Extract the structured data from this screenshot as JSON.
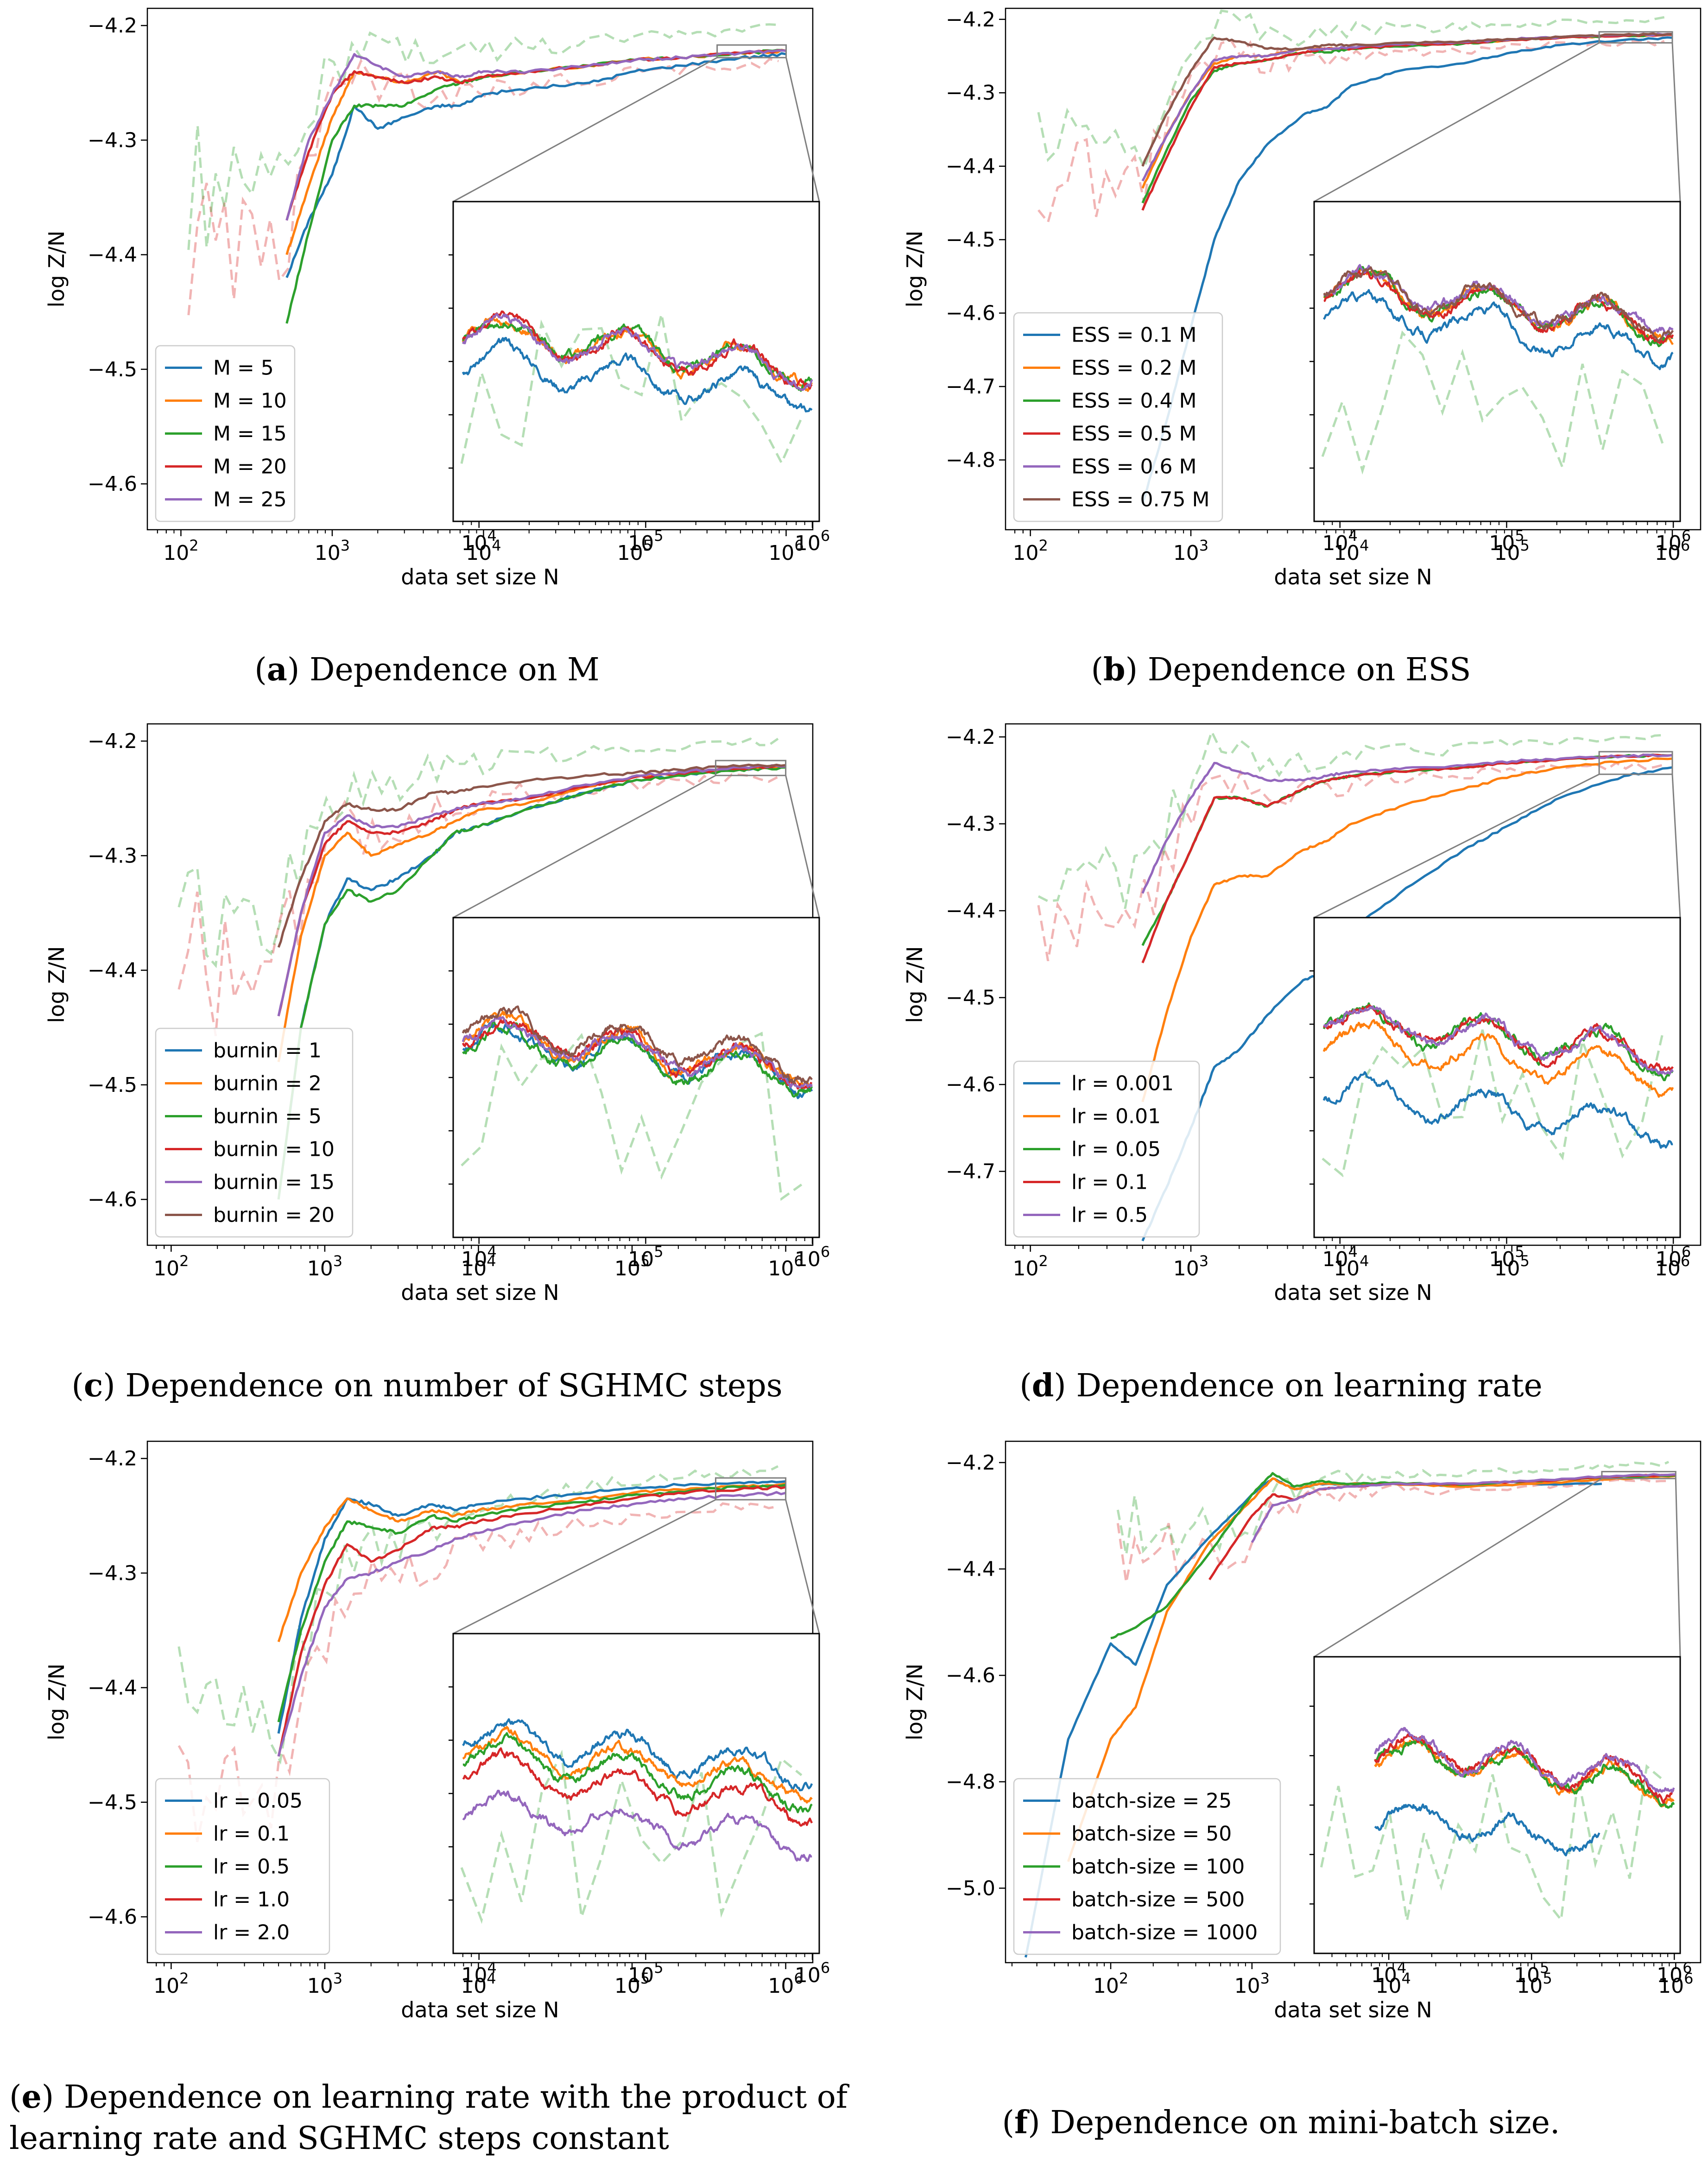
{
  "figure": {
    "captions": [
      {
        "letter": "a",
        "text": "Dependence on M"
      },
      {
        "letter": "b",
        "text": "Dependence on ESS"
      },
      {
        "letter": "c",
        "text": "Dependence on number of SGHMC steps"
      },
      {
        "letter": "d",
        "text": "Dependence on learning rate"
      },
      {
        "letter": "e",
        "text": "Dependence on learning rate with the product of",
        "text2": "learning rate and SGHMC steps constant"
      },
      {
        "letter": "f",
        "text": "Dependence on mini-batch size."
      }
    ]
  },
  "colors": {
    "c0": "#1f77b4",
    "c1": "#ff7f0e",
    "c2": "#2ca02c",
    "c3": "#d62728",
    "c4": "#9467bd",
    "c5": "#8c564b",
    "ref_green": "#2ca02c",
    "ref_red": "#d62728",
    "zoom": "#808080"
  },
  "chart_data": [
    {
      "type": "line",
      "panel": "a",
      "xscale": "log",
      "xlabel": "data set size N",
      "ylabel": "log Z/N",
      "xlim": [
        60,
        1500000
      ],
      "ylim": [
        -4.64,
        -4.185
      ],
      "yticks": [
        -4.2,
        -4.3,
        -4.4,
        -4.5,
        -4.6
      ],
      "xtick_labels": [
        "10^2",
        "10^3",
        "10^4",
        "10^5",
        "10^6"
      ],
      "legend": "lower-left",
      "zoom_region": {
        "x": [
          350000,
          1000000
        ],
        "y": [
          -4.228,
          -4.217
        ]
      },
      "inset_x": [
        7000,
        1100000
      ],
      "inset_y": [
        -4.238,
        -4.2128
      ],
      "x": [
        500,
        700,
        1000,
        1400,
        2000,
        3000,
        5000,
        7000,
        10000,
        20000,
        50000,
        100000,
        200000,
        500000,
        1000000
      ],
      "series": [
        {
          "name": "M = 5",
          "color": "c0",
          "values": [
            -4.42,
            -4.37,
            -4.33,
            -4.27,
            -4.29,
            -4.28,
            -4.27,
            -4.27,
            -4.26,
            -4.255,
            -4.25,
            -4.24,
            -4.235,
            -4.228,
            -4.225
          ]
        },
        {
          "name": "M = 10",
          "color": "c1",
          "values": [
            -4.4,
            -4.34,
            -4.28,
            -4.24,
            -4.245,
            -4.25,
            -4.24,
            -4.25,
            -4.245,
            -4.24,
            -4.235,
            -4.23,
            -4.228,
            -4.224,
            -4.222
          ]
        },
        {
          "name": "M = 15",
          "color": "c2",
          "values": [
            -4.46,
            -4.38,
            -4.3,
            -4.27,
            -4.27,
            -4.27,
            -4.255,
            -4.25,
            -4.245,
            -4.24,
            -4.235,
            -4.23,
            -4.228,
            -4.224,
            -4.222
          ]
        },
        {
          "name": "M = 20",
          "color": "c3",
          "values": [
            -4.37,
            -4.31,
            -4.26,
            -4.24,
            -4.245,
            -4.25,
            -4.245,
            -4.25,
            -4.245,
            -4.24,
            -4.235,
            -4.23,
            -4.228,
            -4.224,
            -4.222
          ]
        },
        {
          "name": "M = 25",
          "color": "c4",
          "values": [
            -4.37,
            -4.3,
            -4.26,
            -4.225,
            -4.235,
            -4.245,
            -4.24,
            -4.245,
            -4.24,
            -4.24,
            -4.235,
            -4.23,
            -4.228,
            -4.224,
            -4.222
          ]
        }
      ]
    },
    {
      "type": "line",
      "panel": "b",
      "xscale": "log",
      "xlabel": "data set size N",
      "ylabel": "log Z/N",
      "xlim": [
        70,
        1500000
      ],
      "ylim": [
        -4.895,
        -4.185
      ],
      "yticks": [
        -4.2,
        -4.3,
        -4.4,
        -4.5,
        -4.6,
        -4.7,
        -4.8
      ],
      "xtick_labels": [
        "10^2",
        "10^3",
        "10^4",
        "10^5",
        "10^6"
      ],
      "legend": "lower-left",
      "zoom_region": {
        "x": [
          350000,
          1000000
        ],
        "y": [
          -4.232,
          -4.217
        ]
      },
      "inset_x": [
        7000,
        1100000
      ],
      "inset_y": [
        -4.26,
        -4.212
      ],
      "x": [
        500,
        700,
        1000,
        1400,
        2000,
        3000,
        5000,
        7000,
        10000,
        20000,
        50000,
        100000,
        200000,
        500000,
        1000000
      ],
      "series": [
        {
          "name": "ESS = 0.1 M",
          "color": "c0",
          "values": [
            -4.86,
            -4.75,
            -4.62,
            -4.5,
            -4.42,
            -4.37,
            -4.33,
            -4.32,
            -4.29,
            -4.27,
            -4.26,
            -4.245,
            -4.235,
            -4.228,
            -4.225
          ]
        },
        {
          "name": "ESS = 0.2 M",
          "color": "c1",
          "values": [
            -4.43,
            -4.36,
            -4.3,
            -4.26,
            -4.25,
            -4.25,
            -4.24,
            -4.24,
            -4.24,
            -4.235,
            -4.232,
            -4.228,
            -4.225,
            -4.222,
            -4.221
          ]
        },
        {
          "name": "ESS = 0.4 M",
          "color": "c2",
          "values": [
            -4.45,
            -4.38,
            -4.31,
            -4.27,
            -4.26,
            -4.255,
            -4.245,
            -4.245,
            -4.24,
            -4.237,
            -4.233,
            -4.228,
            -4.225,
            -4.222,
            -4.221
          ]
        },
        {
          "name": "ESS = 0.5 M",
          "color": "c3",
          "values": [
            -4.46,
            -4.39,
            -4.32,
            -4.265,
            -4.26,
            -4.255,
            -4.245,
            -4.24,
            -4.24,
            -4.235,
            -4.232,
            -4.228,
            -4.225,
            -4.222,
            -4.221
          ]
        },
        {
          "name": "ESS = 0.6 M",
          "color": "c4",
          "values": [
            -4.42,
            -4.36,
            -4.3,
            -4.255,
            -4.25,
            -4.25,
            -4.24,
            -4.24,
            -4.238,
            -4.234,
            -4.231,
            -4.227,
            -4.224,
            -4.221,
            -4.22
          ]
        },
        {
          "name": "ESS = 0.75 M",
          "color": "c5",
          "values": [
            -4.4,
            -4.33,
            -4.27,
            -4.225,
            -4.23,
            -4.24,
            -4.24,
            -4.235,
            -4.235,
            -4.232,
            -4.23,
            -4.227,
            -4.224,
            -4.221,
            -4.22
          ]
        }
      ]
    },
    {
      "type": "line",
      "panel": "c",
      "xscale": "log",
      "xlabel": "data set size N",
      "ylabel": "log Z/N",
      "xlim": [
        70,
        1500000
      ],
      "ylim": [
        -4.64,
        -4.185
      ],
      "yticks": [
        -4.2,
        -4.3,
        -4.4,
        -4.5,
        -4.6
      ],
      "xtick_labels": [
        "10^2",
        "10^3",
        "10^4",
        "10^5",
        "10^6"
      ],
      "legend": "lower-left",
      "zoom_region": {
        "x": [
          350000,
          1000000
        ],
        "y": [
          -4.23,
          -4.217
        ]
      },
      "inset_x": [
        7000,
        1100000
      ],
      "inset_y": [
        -4.245,
        -4.212
      ],
      "x": [
        500,
        700,
        1000,
        1400,
        2000,
        3000,
        5000,
        7000,
        10000,
        20000,
        50000,
        100000,
        200000,
        500000,
        1000000
      ],
      "series": [
        {
          "name": "burnin = 1",
          "color": "c0",
          "values": [
            -4.6,
            -4.45,
            -4.36,
            -4.32,
            -4.33,
            -4.32,
            -4.3,
            -4.28,
            -4.275,
            -4.26,
            -4.245,
            -4.235,
            -4.23,
            -4.225,
            -4.223
          ]
        },
        {
          "name": "burnin = 2",
          "color": "c1",
          "values": [
            -4.48,
            -4.37,
            -4.3,
            -4.28,
            -4.3,
            -4.29,
            -4.28,
            -4.27,
            -4.26,
            -4.255,
            -4.24,
            -4.232,
            -4.228,
            -4.224,
            -4.222
          ]
        },
        {
          "name": "burnin = 5",
          "color": "c2",
          "values": [
            -4.6,
            -4.45,
            -4.36,
            -4.33,
            -4.34,
            -4.33,
            -4.3,
            -4.28,
            -4.275,
            -4.26,
            -4.245,
            -4.235,
            -4.23,
            -4.225,
            -4.223
          ]
        },
        {
          "name": "burnin = 10",
          "color": "c3",
          "values": [
            -4.44,
            -4.35,
            -4.29,
            -4.27,
            -4.28,
            -4.28,
            -4.27,
            -4.26,
            -4.255,
            -4.25,
            -4.24,
            -4.232,
            -4.228,
            -4.224,
            -4.222
          ]
        },
        {
          "name": "burnin = 15",
          "color": "c4",
          "values": [
            -4.44,
            -4.35,
            -4.28,
            -4.265,
            -4.275,
            -4.275,
            -4.265,
            -4.26,
            -4.255,
            -4.25,
            -4.238,
            -4.231,
            -4.227,
            -4.223,
            -4.222
          ]
        },
        {
          "name": "burnin = 20",
          "color": "c5",
          "values": [
            -4.38,
            -4.32,
            -4.27,
            -4.255,
            -4.26,
            -4.26,
            -4.245,
            -4.245,
            -4.24,
            -4.235,
            -4.23,
            -4.228,
            -4.225,
            -4.222,
            -4.221
          ]
        }
      ]
    },
    {
      "type": "line",
      "panel": "d",
      "xscale": "log",
      "xlabel": "data set size N",
      "ylabel": "log Z/N",
      "xlim": [
        70,
        1500000
      ],
      "ylim": [
        -4.785,
        -4.185
      ],
      "yticks": [
        -4.2,
        -4.3,
        -4.4,
        -4.5,
        -4.6,
        -4.7
      ],
      "xtick_labels": [
        "10^2",
        "10^3",
        "10^4",
        "10^5",
        "10^6"
      ],
      "legend": "lower-left",
      "zoom_region": {
        "x": [
          350000,
          1000000
        ],
        "y": [
          -4.243,
          -4.217
        ]
      },
      "inset_x": [
        7000,
        1100000
      ],
      "inset_y": [
        -4.255,
        -4.21
      ],
      "x": [
        500,
        700,
        1000,
        1400,
        2000,
        3000,
        5000,
        7000,
        10000,
        20000,
        50000,
        100000,
        200000,
        500000,
        1000000
      ],
      "series": [
        {
          "name": "lr = 0.001",
          "color": "c0",
          "values": [
            -4.78,
            -4.72,
            -4.65,
            -4.58,
            -4.56,
            -4.52,
            -4.48,
            -4.47,
            -4.42,
            -4.38,
            -4.33,
            -4.3,
            -4.27,
            -4.245,
            -4.235
          ]
        },
        {
          "name": "lr = 0.01",
          "color": "c1",
          "values": [
            -4.62,
            -4.52,
            -4.43,
            -4.37,
            -4.36,
            -4.36,
            -4.33,
            -4.32,
            -4.3,
            -4.28,
            -4.26,
            -4.245,
            -4.235,
            -4.228,
            -4.225
          ]
        },
        {
          "name": "lr = 0.05",
          "color": "c2",
          "values": [
            -4.44,
            -4.39,
            -4.33,
            -4.27,
            -4.27,
            -4.28,
            -4.26,
            -4.25,
            -4.245,
            -4.24,
            -4.235,
            -4.23,
            -4.226,
            -4.222,
            -4.221
          ]
        },
        {
          "name": "lr = 0.1",
          "color": "c3",
          "values": [
            -4.46,
            -4.39,
            -4.33,
            -4.27,
            -4.27,
            -4.28,
            -4.26,
            -4.25,
            -4.245,
            -4.24,
            -4.235,
            -4.23,
            -4.226,
            -4.222,
            -4.221
          ]
        },
        {
          "name": "lr = 0.5",
          "color": "c4",
          "values": [
            -4.38,
            -4.32,
            -4.27,
            -4.23,
            -4.24,
            -4.25,
            -4.25,
            -4.245,
            -4.24,
            -4.237,
            -4.233,
            -4.228,
            -4.225,
            -4.222,
            -4.221
          ]
        }
      ]
    },
    {
      "type": "line",
      "panel": "e",
      "xscale": "log",
      "xlabel": "data set size N",
      "ylabel": "log Z/N",
      "xlim": [
        70,
        1500000
      ],
      "ylim": [
        -4.64,
        -4.185
      ],
      "yticks": [
        -4.2,
        -4.3,
        -4.4,
        -4.5,
        -4.6
      ],
      "xtick_labels": [
        "10^2",
        "10^3",
        "10^4",
        "10^5",
        "10^6"
      ],
      "legend": "lower-left",
      "zoom_region": {
        "x": [
          350000,
          1000000
        ],
        "y": [
          -4.236,
          -4.217
        ]
      },
      "inset_x": [
        7000,
        1100000
      ],
      "inset_y": [
        -4.245,
        -4.212
      ],
      "x": [
        500,
        700,
        1000,
        1400,
        2000,
        3000,
        5000,
        7000,
        10000,
        20000,
        50000,
        100000,
        200000,
        500000,
        1000000
      ],
      "series": [
        {
          "name": "lr = 0.05",
          "color": "c0",
          "values": [
            -4.44,
            -4.34,
            -4.27,
            -4.235,
            -4.24,
            -4.25,
            -4.24,
            -4.245,
            -4.24,
            -4.235,
            -4.23,
            -4.226,
            -4.223,
            -4.221,
            -4.22
          ]
        },
        {
          "name": "lr = 0.1",
          "color": "c1",
          "values": [
            -4.36,
            -4.3,
            -4.26,
            -4.235,
            -4.245,
            -4.255,
            -4.245,
            -4.25,
            -4.245,
            -4.24,
            -4.235,
            -4.23,
            -4.227,
            -4.224,
            -4.222
          ]
        },
        {
          "name": "lr = 0.5",
          "color": "c2",
          "values": [
            -4.43,
            -4.35,
            -4.29,
            -4.255,
            -4.26,
            -4.265,
            -4.25,
            -4.255,
            -4.25,
            -4.243,
            -4.238,
            -4.232,
            -4.229,
            -4.225,
            -4.223
          ]
        },
        {
          "name": "lr = 1.0",
          "color": "c3",
          "values": [
            -4.46,
            -4.37,
            -4.31,
            -4.275,
            -4.29,
            -4.28,
            -4.26,
            -4.26,
            -4.255,
            -4.248,
            -4.24,
            -4.235,
            -4.23,
            -4.227,
            -4.225
          ]
        },
        {
          "name": "lr = 2.0",
          "color": "c4",
          "values": [
            -4.46,
            -4.39,
            -4.33,
            -4.305,
            -4.3,
            -4.29,
            -4.28,
            -4.27,
            -4.265,
            -4.255,
            -4.245,
            -4.24,
            -4.235,
            -4.232,
            -4.23
          ]
        }
      ]
    },
    {
      "type": "line",
      "panel": "f",
      "xscale": "log",
      "xlabel": "data set size N",
      "ylabel": "log Z/N",
      "xlim": [
        18,
        1500000
      ],
      "ylim": [
        -5.14,
        -4.16
      ],
      "yticks": [
        -4.2,
        -4.4,
        -4.6,
        -4.8,
        -5.0
      ],
      "xtick_labels": [
        "10^2",
        "10^3",
        "10^4",
        "10^5",
        "10^6"
      ],
      "legend": "lower-left",
      "zoom_region": {
        "x": [
          300000,
          1000000
        ],
        "y": [
          -4.23,
          -4.217
        ]
      },
      "inset_x": [
        3000,
        1100000
      ],
      "inset_y": [
        -4.265,
        -4.21
      ],
      "x": [
        25,
        50,
        100,
        150,
        250,
        500,
        1000,
        1400,
        2000,
        3000,
        5000,
        10000,
        30000,
        100000,
        300000,
        1000000
      ],
      "series": [
        {
          "name": "batch-size = 25",
          "color": "c0",
          "values": [
            -5.13,
            -4.72,
            -4.54,
            -4.58,
            -4.43,
            -4.34,
            -4.26,
            -4.23,
            -4.25,
            -4.24,
            -4.24,
            -4.24,
            -4.245,
            -4.24,
            -4.24,
            null
          ]
        },
        {
          "name": "batch-size = 50",
          "color": "c1",
          "values": [
            null,
            -4.95,
            -4.72,
            -4.66,
            -4.48,
            -4.35,
            -4.27,
            -4.23,
            -4.25,
            -4.24,
            -4.24,
            -4.24,
            -4.245,
            -4.24,
            -4.232,
            -4.225
          ]
        },
        {
          "name": "batch-size = 100",
          "color": "c2",
          "values": [
            null,
            null,
            -4.53,
            -4.51,
            -4.47,
            -4.37,
            -4.26,
            -4.22,
            -4.245,
            -4.235,
            -4.24,
            -4.238,
            -4.242,
            -4.235,
            -4.228,
            -4.224
          ]
        },
        {
          "name": "batch-size = 500",
          "color": "c3",
          "values": [
            null,
            null,
            null,
            null,
            null,
            -4.42,
            -4.3,
            -4.26,
            -4.27,
            -4.25,
            -4.245,
            -4.24,
            -4.24,
            -4.235,
            -4.227,
            -4.223
          ]
        },
        {
          "name": "batch-size = 1000",
          "color": "c4",
          "values": [
            null,
            null,
            null,
            null,
            null,
            null,
            -4.35,
            -4.28,
            -4.27,
            -4.25,
            -4.245,
            -4.24,
            -4.24,
            -4.234,
            -4.226,
            -4.222
          ]
        }
      ]
    }
  ]
}
